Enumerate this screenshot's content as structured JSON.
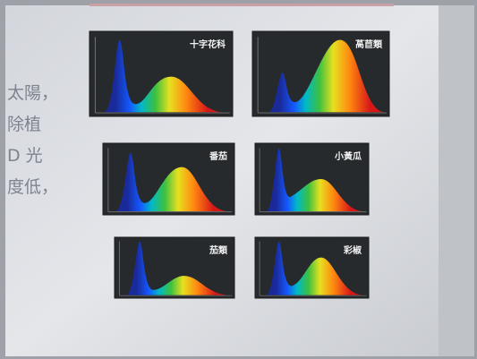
{
  "side_text": [
    "太陽，",
    "除植",
    "D 光",
    "度低，"
  ],
  "panels": [
    {
      "label": "十字花科"
    },
    {
      "label": "萵苣類"
    },
    {
      "label": "番茄"
    },
    {
      "label": "小黃瓜"
    },
    {
      "label": "茄類"
    },
    {
      "label": "彩椒"
    }
  ]
}
